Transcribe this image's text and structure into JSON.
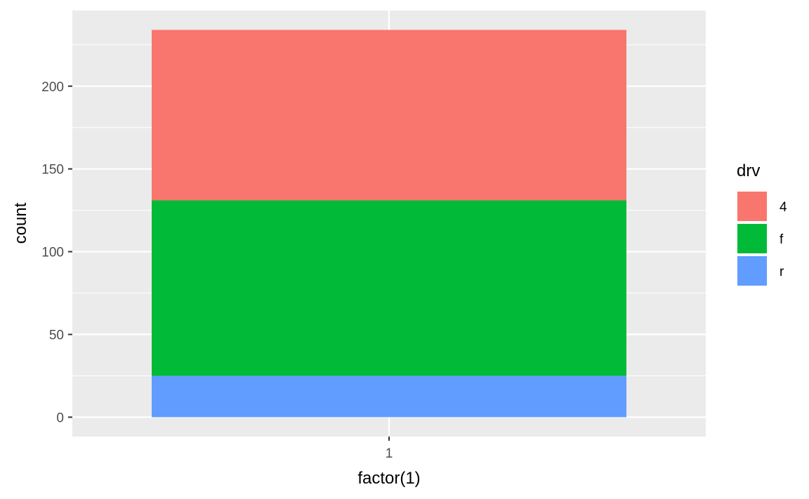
{
  "chart_data": {
    "type": "bar",
    "stacked": true,
    "categories": [
      "1"
    ],
    "series": [
      {
        "name": "4",
        "values": [
          103
        ],
        "color": "#F8766D"
      },
      {
        "name": "f",
        "values": [
          106
        ],
        "color": "#00BA38"
      },
      {
        "name": "r",
        "values": [
          25
        ],
        "color": "#619CFF"
      }
    ],
    "stack_order_top_to_bottom": [
      "4",
      "f",
      "r"
    ],
    "xlabel": "factor(1)",
    "ylabel": "count",
    "yticks": [
      0,
      50,
      100,
      150,
      200
    ],
    "ylim": [
      -11.7,
      245.7
    ],
    "legend": {
      "title": "drv",
      "position": "right"
    },
    "grid": true,
    "panel_background": "#EBEBEB",
    "grid_color": "#FFFFFF"
  }
}
